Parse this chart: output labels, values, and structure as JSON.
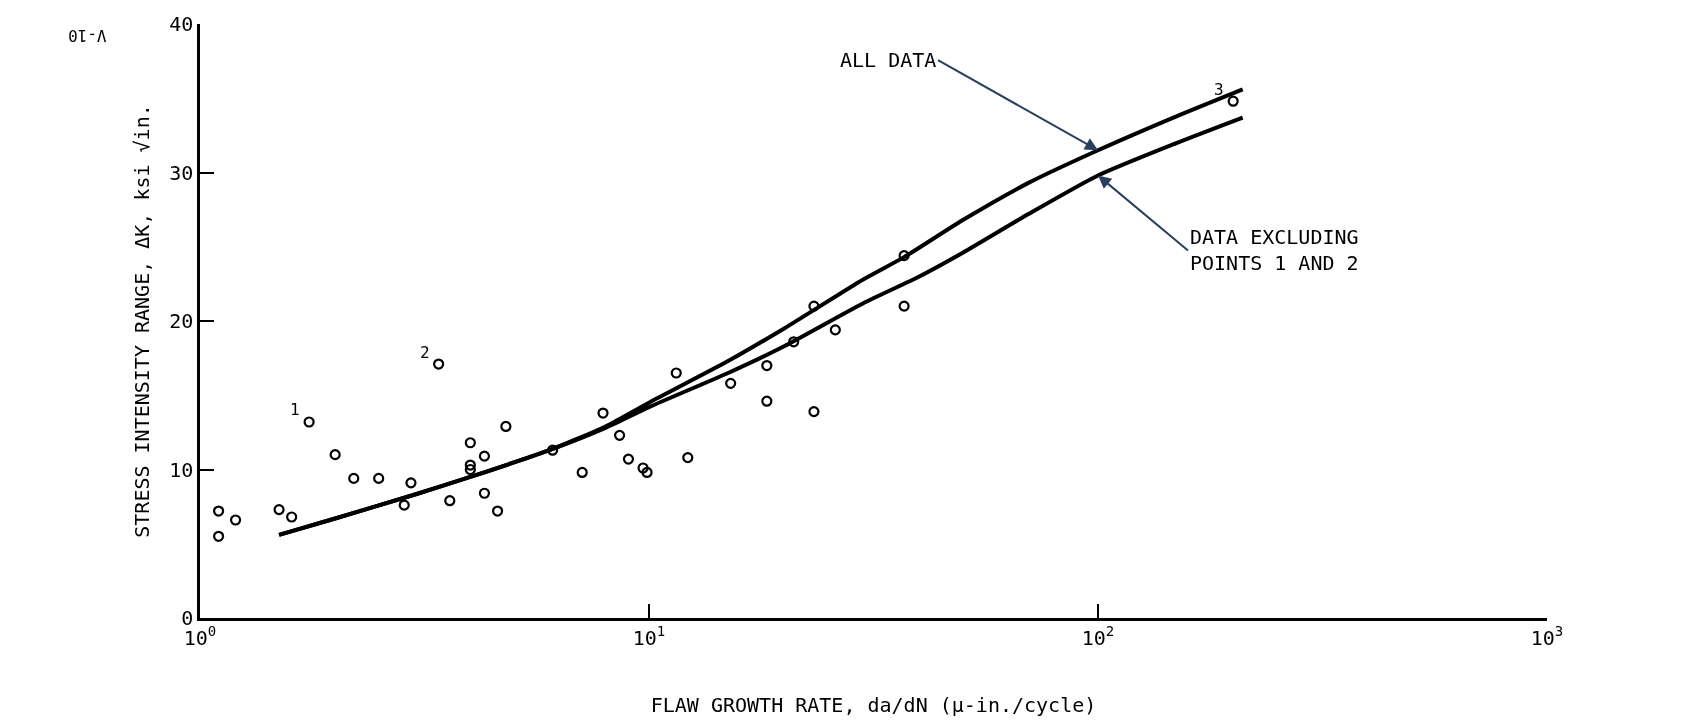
{
  "chart_data": {
    "type": "scatter",
    "xlabel": "FLAW GROWTH RATE, da/dN (μ-in./cycle)",
    "ylabel": "STRESS INTENSITY RANGE, ΔK, ksi √in.",
    "log": "x",
    "xlim": [
      1,
      1000
    ],
    "ylim": [
      0,
      40
    ],
    "xticks": [
      {
        "value": 1,
        "label": "10$^{0}$"
      },
      {
        "value": 10,
        "label": "10$^{1}$"
      },
      {
        "value": 100,
        "label": "10$^{2}$"
      },
      {
        "value": 1000,
        "label": "10$^{3}$"
      }
    ],
    "yticks": [
      0,
      10,
      20,
      30,
      40
    ],
    "series": [
      {
        "marker": "circle",
        "color": "#000000",
        "x": [
          1.1,
          1.1,
          1.2,
          1.5,
          1.6,
          1.75,
          2.0,
          2.2,
          2.5,
          2.85,
          2.95,
          3.4,
          3.6,
          4.0,
          4.0,
          4.0,
          4.3,
          4.3,
          4.6,
          4.8,
          6.1,
          7.1,
          7.9,
          8.6,
          9.0,
          9.7,
          9.9,
          11.5,
          12.2,
          15.2,
          18.3,
          18.3,
          21,
          23.3,
          23.3,
          26,
          37,
          37,
          200
        ],
        "values": [
          7.2,
          5.5,
          6.6,
          7.3,
          6.8,
          13.2,
          11.0,
          9.4,
          9.4,
          7.6,
          9.1,
          17.1,
          7.9,
          11.8,
          10.3,
          10.0,
          10.9,
          8.4,
          7.2,
          12.9,
          11.3,
          9.8,
          13.8,
          12.3,
          10.7,
          10.1,
          9.8,
          16.5,
          10.8,
          15.8,
          17.0,
          14.6,
          18.6,
          21.0,
          13.9,
          19.4,
          24.4,
          21.0,
          34.8
        ]
      },
      {
        "type": "line",
        "marker": "none",
        "line_style": "solid",
        "color": "#000000",
        "x": [
          1.5,
          2,
          3,
          4,
          6,
          8,
          10,
          15,
          20,
          30,
          37,
          50,
          70,
          100,
          150,
          210
        ],
        "values": [
          5.6,
          6.7,
          8.3,
          9.5,
          11.3,
          12.9,
          14.5,
          17.3,
          19.5,
          22.8,
          24.3,
          26.8,
          29.3,
          31.5,
          33.8,
          35.6
        ]
      },
      {
        "type": "line",
        "marker": "none",
        "line_style": "solid",
        "color": "#000000",
        "x": [
          1.5,
          2,
          3,
          4,
          6,
          8,
          10,
          15,
          20,
          30,
          40,
          50,
          70,
          100,
          150,
          210
        ],
        "values": [
          5.6,
          6.7,
          8.3,
          9.5,
          11.3,
          12.8,
          14.2,
          16.5,
          18.3,
          21.2,
          23.0,
          24.6,
          27.2,
          29.8,
          32.0,
          33.7
        ]
      }
    ],
    "annotations": [
      {
        "text": "ALL DATA",
        "x": 100,
        "y": 31.5
      },
      {
        "text": "DATA EXCLUDING\nPOINTS 1 AND 2",
        "x": 100,
        "y": 29.8
      },
      {
        "text": "1",
        "x": 1.75,
        "y": 13.2
      },
      {
        "text": "2",
        "x": 3.4,
        "y": 17.1
      },
      {
        "text": "3",
        "x": 200,
        "y": 34.8
      },
      "V-10"
    ]
  }
}
